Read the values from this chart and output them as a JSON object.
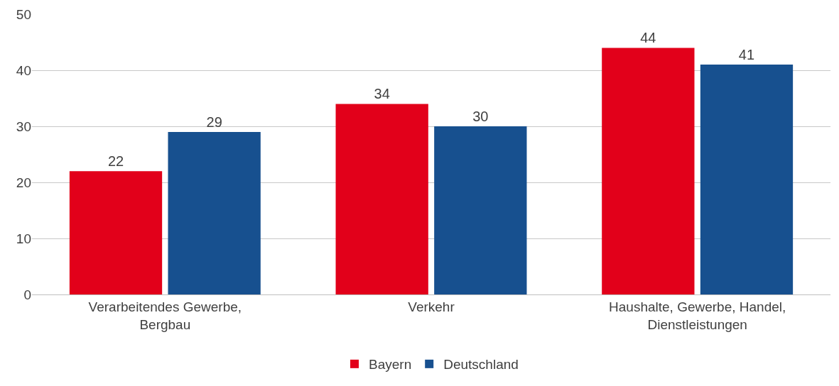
{
  "chart_data": {
    "type": "bar",
    "categories": [
      "Verarbeitendes Gewerbe, Bergbau",
      "Verkehr",
      "Haushalte, Gewerbe, Handel, Dienstleistungen"
    ],
    "series": [
      {
        "name": "Bayern",
        "color": "#e2001a",
        "values": [
          22,
          34,
          44
        ]
      },
      {
        "name": "Deutschland",
        "color": "#17508f",
        "values": [
          29,
          30,
          41
        ]
      }
    ],
    "ylim": [
      0,
      50
    ],
    "yticks": [
      0,
      10,
      20,
      30,
      40,
      50
    ],
    "grid": "y",
    "legend": "bottom",
    "data_labels": true
  }
}
